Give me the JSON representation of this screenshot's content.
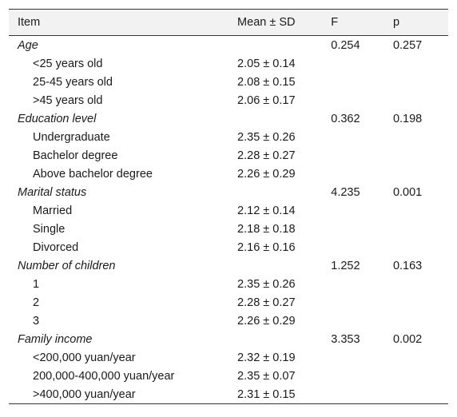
{
  "table": {
    "headers": {
      "item": "Item",
      "mean": "Mean ± SD",
      "f": "F",
      "p": "p"
    },
    "groups": [
      {
        "label": "Age",
        "f": "0.254",
        "p": "0.257",
        "rows": [
          {
            "item": "<25 years old",
            "mean": "2.05 ± 0.14"
          },
          {
            "item": "25-45 years old",
            "mean": "2.08 ± 0.15"
          },
          {
            "item": ">45 years old",
            "mean": "2.06 ± 0.17"
          }
        ]
      },
      {
        "label": "Education level",
        "f": "0.362",
        "p": "0.198",
        "rows": [
          {
            "item": "Undergraduate",
            "mean": "2.35 ± 0.26"
          },
          {
            "item": "Bachelor degree",
            "mean": "2.28 ± 0.27"
          },
          {
            "item": "Above bachelor degree",
            "mean": "2.26 ± 0.29"
          }
        ]
      },
      {
        "label": "Marital status",
        "f": "4.235",
        "p": "0.001",
        "rows": [
          {
            "item": "Married",
            "mean": "2.12 ± 0.14"
          },
          {
            "item": "Single",
            "mean": "2.18 ± 0.18"
          },
          {
            "item": "Divorced",
            "mean": "2.16 ± 0.16"
          }
        ]
      },
      {
        "label": "Number of children",
        "f": "1.252",
        "p": "0.163",
        "rows": [
          {
            "item": "1",
            "mean": "2.35 ± 0.26"
          },
          {
            "item": "2",
            "mean": "2.28 ± 0.27"
          },
          {
            "item": "3",
            "mean": "2.26 ± 0.29"
          }
        ]
      },
      {
        "label": "Family income",
        "f": "3.353",
        "p": "0.002",
        "rows": [
          {
            "item": "<200,000 yuan/year",
            "mean": "2.32 ± 0.19"
          },
          {
            "item": "200,000-400,000 yuan/year",
            "mean": "2.35 ± 0.07"
          },
          {
            "item": ">400,000 yuan/year",
            "mean": "2.31 ± 0.15"
          }
        ]
      }
    ]
  }
}
